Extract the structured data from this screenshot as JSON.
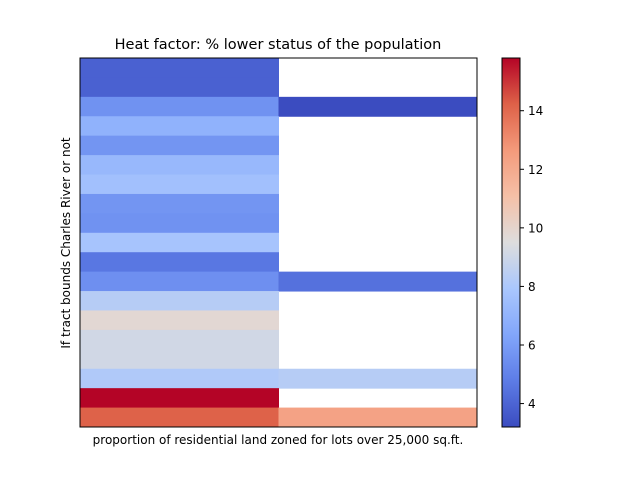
{
  "chart_data": {
    "type": "heatmap",
    "title": "Heat factor: % lower status of the population",
    "xlabel": "proportion of residential land zoned for lots over 25,000 sq.ft.",
    "ylabel": "If tract bounds Charles River or not",
    "x_tick_labels": [],
    "y_tick_labels": [],
    "columns": 2,
    "rows": 19,
    "row_values": [
      [
        3.9,
        null
      ],
      [
        3.9,
        null
      ],
      [
        5.6,
        3.2
      ],
      [
        6.9,
        null
      ],
      [
        5.7,
        null
      ],
      [
        7.2,
        null
      ],
      [
        7.6,
        null
      ],
      [
        5.7,
        null
      ],
      [
        5.6,
        null
      ],
      [
        7.8,
        null
      ],
      [
        4.6,
        null
      ],
      [
        5.5,
        4.4
      ],
      [
        8.3,
        null
      ],
      [
        9.8,
        null
      ],
      [
        9.1,
        null
      ],
      [
        9.1,
        null
      ],
      [
        8.1,
        8.3
      ],
      [
        15.8,
        null
      ],
      [
        14.2,
        12.3
      ]
    ],
    "missing_cells": "blank (white)",
    "colormap": "coolwarm",
    "colorbar": {
      "range": [
        3.2,
        15.8
      ],
      "ticks": [
        "4",
        "6",
        "8",
        "10",
        "12",
        "14"
      ]
    },
    "grid": false,
    "legend": "none"
  }
}
